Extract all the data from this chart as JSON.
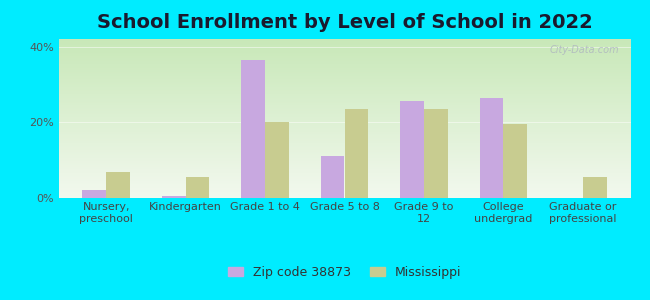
{
  "title": "School Enrollment by Level of School in 2022",
  "categories": [
    "Nursery,\npreschool",
    "Kindergarten",
    "Grade 1 to 4",
    "Grade 5 to 8",
    "Grade 9 to\n12",
    "College\nundergrad",
    "Graduate or\nprofessional"
  ],
  "zip_values": [
    2.0,
    0.5,
    36.5,
    11.0,
    25.5,
    26.5,
    0.0
  ],
  "ms_values": [
    7.0,
    5.5,
    20.0,
    23.5,
    23.5,
    19.5,
    5.5
  ],
  "zip_color": "#c8a8e0",
  "ms_color": "#c8cc90",
  "background_outer": "#00ecff",
  "background_inner_top": "#f2f8ee",
  "background_inner_bottom": "#c8e8b8",
  "ylim": [
    0,
    42
  ],
  "yticks": [
    0,
    20,
    40
  ],
  "ytick_labels": [
    "0%",
    "20%",
    "40%"
  ],
  "legend_zip_label": "Zip code 38873",
  "legend_ms_label": "Mississippi",
  "watermark": "City-Data.com",
  "title_fontsize": 14,
  "tick_fontsize": 8,
  "legend_fontsize": 9
}
